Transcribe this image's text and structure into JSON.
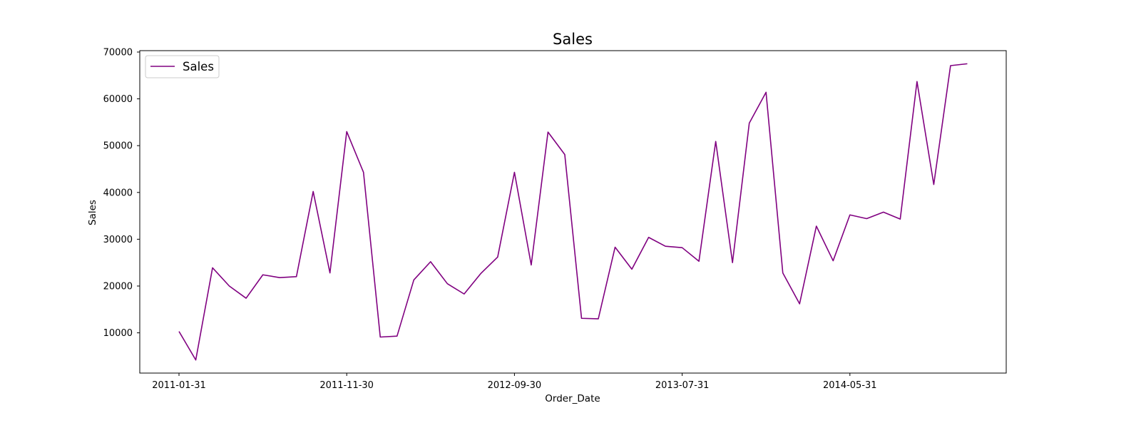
{
  "chart_data": {
    "type": "line",
    "title": "Sales",
    "xlabel": "Order_Date",
    "ylabel": "Sales",
    "x": [
      "2011-01-31",
      "2011-02-28",
      "2011-03-31",
      "2011-04-30",
      "2011-05-31",
      "2011-06-30",
      "2011-07-31",
      "2011-08-31",
      "2011-09-30",
      "2011-10-31",
      "2011-11-30",
      "2011-12-31",
      "2012-01-31",
      "2012-02-29",
      "2012-03-31",
      "2012-04-30",
      "2012-05-31",
      "2012-06-30",
      "2012-07-31",
      "2012-08-31",
      "2012-09-30",
      "2012-10-31",
      "2012-11-30",
      "2012-12-31",
      "2013-01-31",
      "2013-02-28",
      "2013-03-31",
      "2013-04-30",
      "2013-05-31",
      "2013-06-30",
      "2013-07-31",
      "2013-08-31",
      "2013-09-30",
      "2013-10-31",
      "2013-11-30",
      "2013-12-31",
      "2014-01-31",
      "2014-02-28",
      "2014-03-31",
      "2014-04-30",
      "2014-05-31",
      "2014-06-30",
      "2014-07-31",
      "2014-08-31",
      "2014-09-30",
      "2014-10-31",
      "2014-11-30",
      "2014-12-31"
    ],
    "series": [
      {
        "name": "Sales",
        "color": "#800080",
        "values": [
          10300,
          4200,
          23900,
          20000,
          17400,
          22400,
          21800,
          22000,
          40200,
          22800,
          53000,
          44300,
          9100,
          9300,
          21300,
          25200,
          20500,
          18300,
          22700,
          26200,
          44300,
          24500,
          52900,
          48100,
          13100,
          13000,
          28300,
          23600,
          30400,
          28500,
          28200,
          25300,
          50900,
          25000,
          54800,
          61400,
          22800,
          16200,
          32800,
          25400,
          35200,
          34400,
          35800,
          34300,
          63700,
          41700,
          67100,
          67500
        ]
      }
    ],
    "xticks": [
      "2011-01-31",
      "2011-11-30",
      "2012-09-30",
      "2013-07-31",
      "2014-05-31"
    ],
    "yticks": [
      10000,
      20000,
      30000,
      40000,
      50000,
      60000,
      70000
    ],
    "ylim": [
      1400,
      70300
    ],
    "grid": false,
    "legend": "upper-left"
  }
}
